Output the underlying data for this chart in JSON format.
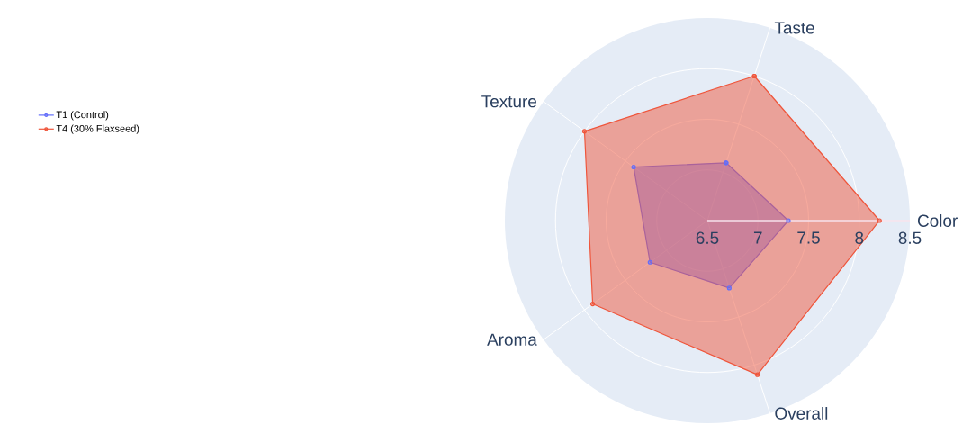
{
  "chart_data": {
    "type": "radar",
    "categories": [
      "Taste",
      "Color",
      "Overall",
      "Aroma",
      "Texture"
    ],
    "series": [
      {
        "name": "T1 (Control)",
        "color": "#636efa",
        "values": [
          7.1,
          7.3,
          7.2,
          7.2,
          7.4
        ]
      },
      {
        "name": "T4 (30% Flaxseed)",
        "color": "#ef553b",
        "values": [
          8.0,
          8.2,
          8.1,
          7.9,
          8.0
        ]
      }
    ],
    "ylim": [
      6.5,
      8.5
    ],
    "yticks": [
      6.5,
      7,
      7.5,
      8,
      8.5
    ],
    "grid": true,
    "legend": "top left",
    "marker": "circle",
    "line_style": "solid"
  }
}
